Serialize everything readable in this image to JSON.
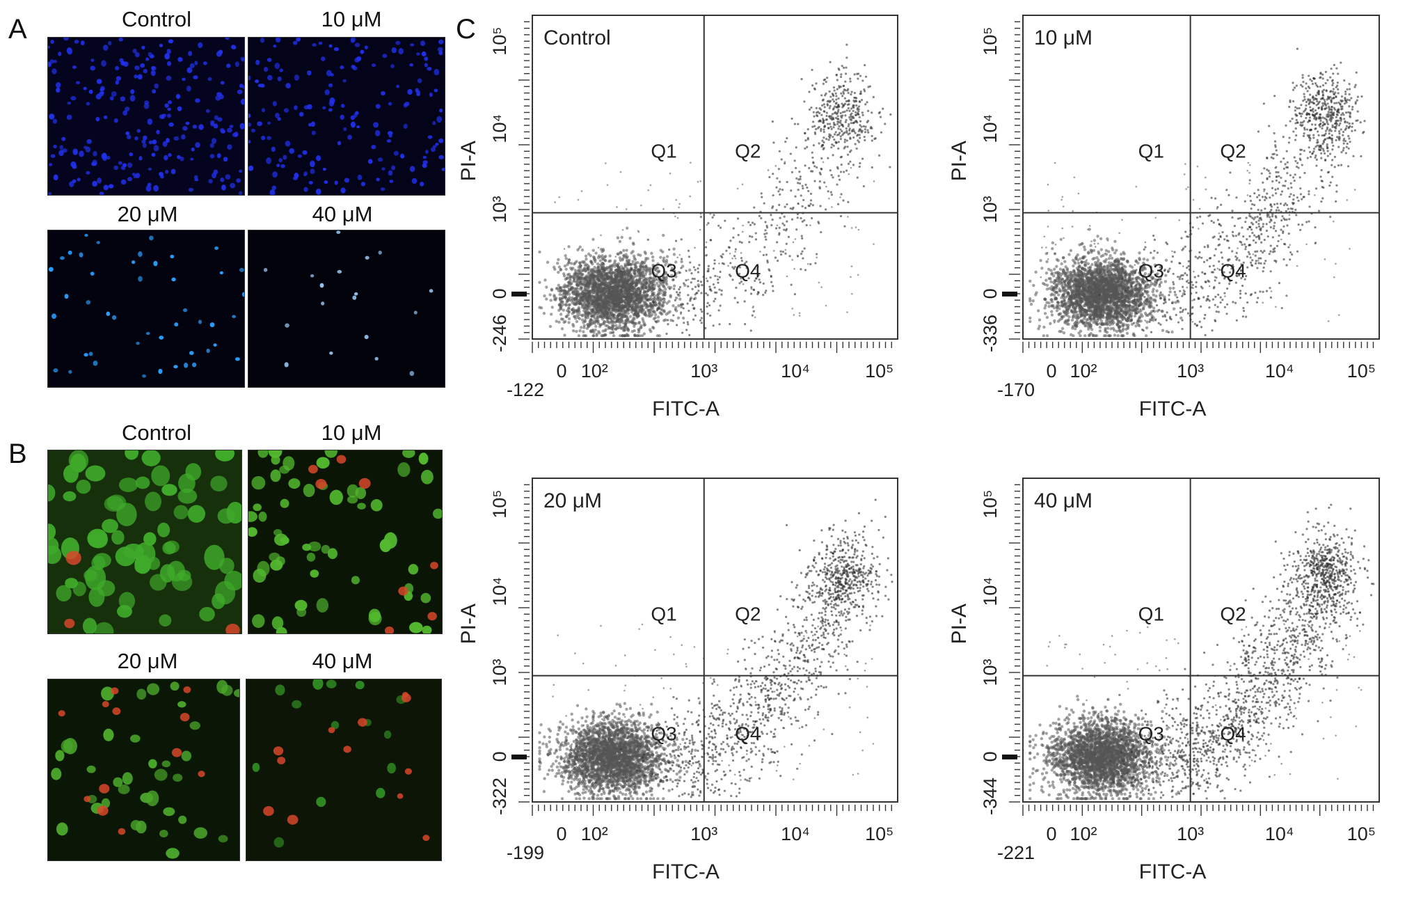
{
  "figure": {
    "panel_labels": [
      "A",
      "B",
      "C"
    ],
    "panel_a": {
      "images": [
        {
          "label": "Control",
          "color": "#2030e8"
        },
        {
          "label": "10 μM",
          "color": "#2030e8"
        },
        {
          "label": "20 μM",
          "color": "#2aa0ff"
        },
        {
          "label": "40 μM",
          "color": "#9fd0ff"
        }
      ]
    },
    "panel_b": {
      "images": [
        {
          "label": "Control",
          "color": "#3faa2a"
        },
        {
          "label": "10 μM",
          "color": "#52b82e"
        },
        {
          "label": "20 μM",
          "color": "#4aa52a"
        },
        {
          "label": "40 μM",
          "color": "#2f8a22"
        }
      ],
      "red_color": "#d8462a"
    }
  },
  "chart_data": [
    {
      "type": "scatter",
      "title": "Control",
      "xlabel": "FITC-A",
      "ylabel": "PI-A",
      "xlim_label": "-122",
      "ylim_label": "-246",
      "x_ticks": [
        "0",
        "10²",
        "10³",
        "10⁴",
        "10⁵"
      ],
      "y_ticks": [
        "0",
        "10³",
        "10⁴",
        "10⁵"
      ],
      "quadrants": [
        "Q1",
        "Q2",
        "Q3",
        "Q4"
      ],
      "population": {
        "main_x_log": 2.2,
        "main_y_log": 0.0,
        "tail_strength": 0.22,
        "upper_cluster": true
      }
    },
    {
      "type": "scatter",
      "title": "10 μM",
      "xlabel": "FITC-A",
      "ylabel": "PI-A",
      "xlim_label": "-170",
      "ylim_label": "-336",
      "x_ticks": [
        "0",
        "10²",
        "10³",
        "10⁴",
        "10⁵"
      ],
      "y_ticks": [
        "0",
        "10³",
        "10⁴",
        "10⁵"
      ],
      "quadrants": [
        "Q1",
        "Q2",
        "Q3",
        "Q4"
      ],
      "population": {
        "main_x_log": 2.1,
        "main_y_log": 0.0,
        "tail_strength": 0.35,
        "upper_cluster": true
      }
    },
    {
      "type": "scatter",
      "title": "20 μM",
      "xlabel": "FITC-A",
      "ylabel": "PI-A",
      "xlim_label": "-199",
      "ylim_label": "-322",
      "x_ticks": [
        "0",
        "10²",
        "10³",
        "10⁴",
        "10⁵"
      ],
      "y_ticks": [
        "0",
        "10³",
        "10⁴",
        "10⁵"
      ],
      "quadrants": [
        "Q1",
        "Q2",
        "Q3",
        "Q4"
      ],
      "population": {
        "main_x_log": 2.1,
        "main_y_log": 0.0,
        "tail_strength": 0.45,
        "upper_cluster": true
      }
    },
    {
      "type": "scatter",
      "title": "40 μM",
      "xlabel": "FITC-A",
      "ylabel": "PI-A",
      "xlim_label": "-221",
      "ylim_label": "-344",
      "x_ticks": [
        "0",
        "10²",
        "10³",
        "10⁴",
        "10⁵"
      ],
      "y_ticks": [
        "0",
        "10³",
        "10⁴",
        "10⁵"
      ],
      "quadrants": [
        "Q1",
        "Q2",
        "Q3",
        "Q4"
      ],
      "population": {
        "main_x_log": 2.2,
        "main_y_log": 0.0,
        "tail_strength": 0.6,
        "upper_cluster": true
      }
    }
  ]
}
